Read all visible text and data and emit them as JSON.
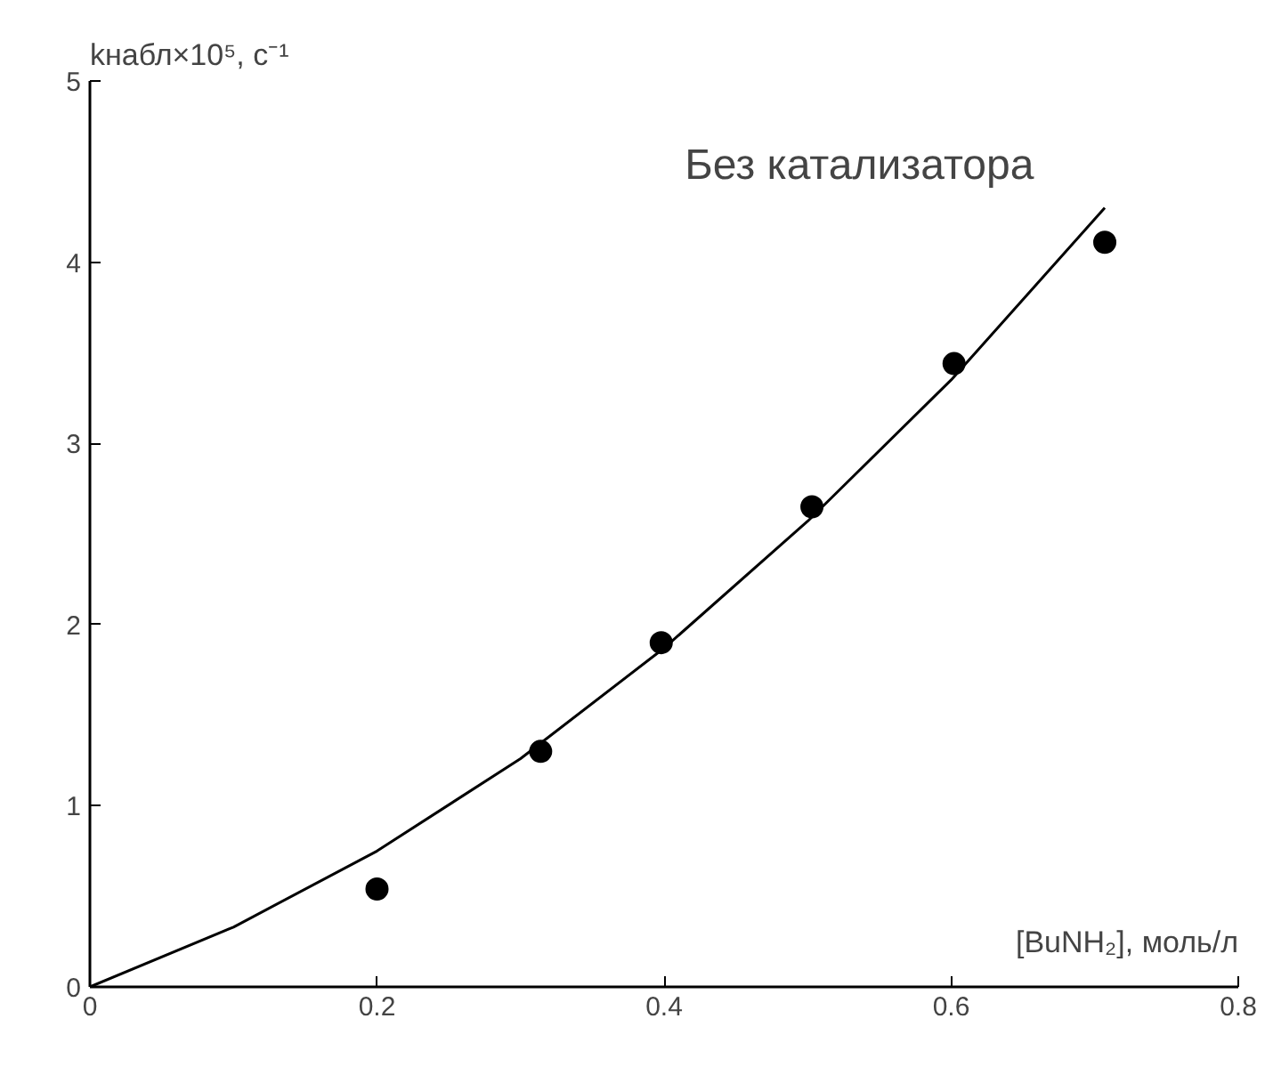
{
  "chart_data": {
    "type": "scatter",
    "title": "Без катализатора",
    "xlabel": "[BuNH₂], моль/л",
    "ylabel": "kнабл×10⁵, с⁻¹",
    "xlim": [
      0,
      0.8
    ],
    "ylim": [
      0,
      5
    ],
    "xticks": [
      0,
      0.2,
      0.4,
      0.6,
      0.8
    ],
    "yticks": [
      0,
      1,
      2,
      3,
      4,
      5
    ],
    "grid": false,
    "marker": "circle",
    "series": [
      {
        "color": "#000000",
        "x": [
          0.2,
          0.314,
          0.398,
          0.503,
          0.602,
          0.707
        ],
        "values": [
          0.54,
          1.3,
          1.9,
          2.65,
          3.44,
          4.11
        ]
      },
      {
        "type": "line",
        "color": "#000000",
        "marker": "none",
        "line_style": "solid",
        "x": [
          0,
          0.1,
          0.2,
          0.3,
          0.4,
          0.5,
          0.6,
          0.707
        ],
        "values": [
          0,
          0.33,
          0.75,
          1.26,
          1.87,
          2.57,
          3.35,
          4.3
        ]
      }
    ]
  }
}
